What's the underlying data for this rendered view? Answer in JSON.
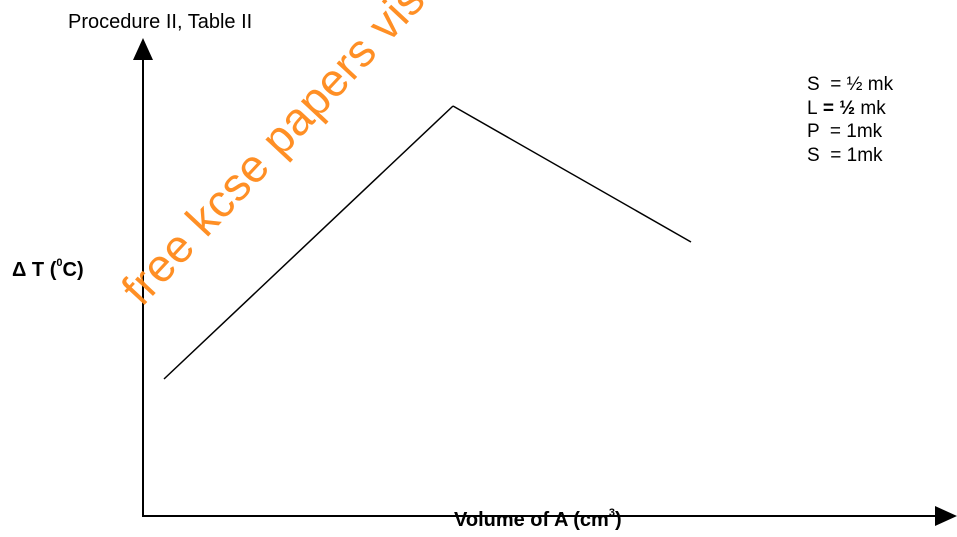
{
  "graph": {
    "title": "Procedure II, Table II",
    "y_axis_label": "Δ T (",
    "y_axis_sup": "0",
    "y_axis_label_end": "C)",
    "x_axis_label": "Volume of A (cm",
    "x_axis_sup": "3",
    "x_axis_label_end": ")"
  },
  "marking_scheme": [
    {
      "letter": "S",
      "sep": "  = ",
      "mark": "½ mk"
    },
    {
      "letter": "L",
      "sep": " = ",
      "mark": "½",
      "suffix": " mk"
    },
    {
      "letter": "P",
      "sep": "  = ",
      "mark": "1mk"
    },
    {
      "letter": "S",
      "sep": "  = ",
      "mark": "1mk"
    }
  ],
  "watermark": {
    "text": "free kcse papers visit www.freekcsepastpapers.com",
    "color": "#ff8a1a"
  }
}
